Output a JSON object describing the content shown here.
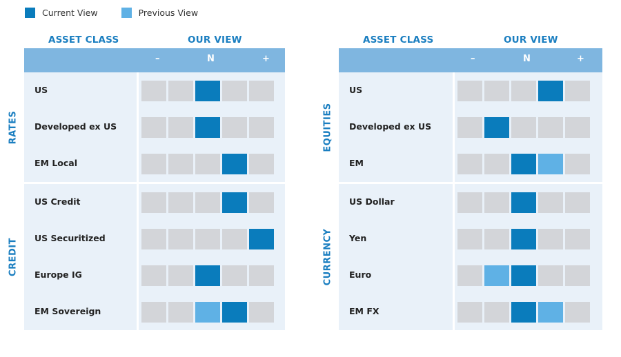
{
  "legend": {
    "current_label": "Current View",
    "previous_label": "Previous View",
    "current_color": "#0a7cbc",
    "previous_color": "#5fb1e5"
  },
  "panels": [
    {
      "col_asset": "ASSET CLASS",
      "col_view": "OUR VIEW",
      "scale": [
        "–",
        "N",
        "+"
      ]
    },
    {
      "col_asset": "ASSET CLASS",
      "col_view": "OUR VIEW",
      "scale": [
        "–",
        "N",
        "+"
      ]
    }
  ],
  "chart_data": {
    "type": "table",
    "scale_positions": 5,
    "legend": [
      "Current View",
      "Previous View"
    ],
    "panels": [
      {
        "groups": [
          {
            "name": "RATES",
            "rows": [
              {
                "label": "US",
                "current": 3,
                "previous": null
              },
              {
                "label": "Developed ex US",
                "current": 3,
                "previous": null
              },
              {
                "label": "EM Local",
                "current": 4,
                "previous": null
              }
            ]
          },
          {
            "name": "CREDIT",
            "rows": [
              {
                "label": "US Credit",
                "current": 4,
                "previous": null
              },
              {
                "label": "US Securitized",
                "current": 5,
                "previous": null
              },
              {
                "label": "Europe IG",
                "current": 3,
                "previous": null
              },
              {
                "label": "EM Sovereign",
                "current": 4,
                "previous": 3
              }
            ]
          }
        ]
      },
      {
        "groups": [
          {
            "name": "EQUITIES",
            "rows": [
              {
                "label": "US",
                "current": 4,
                "previous": null
              },
              {
                "label": "Developed ex US",
                "current": 2,
                "previous": null
              },
              {
                "label": "EM",
                "current": 3,
                "previous": 4
              }
            ]
          },
          {
            "name": "CURRENCY",
            "rows": [
              {
                "label": "US Dollar",
                "current": 3,
                "previous": null
              },
              {
                "label": "Yen",
                "current": 3,
                "previous": null
              },
              {
                "label": "Euro",
                "current": 3,
                "previous": 2
              },
              {
                "label": "EM FX",
                "current": 3,
                "previous": 4
              }
            ]
          }
        ]
      }
    ]
  }
}
